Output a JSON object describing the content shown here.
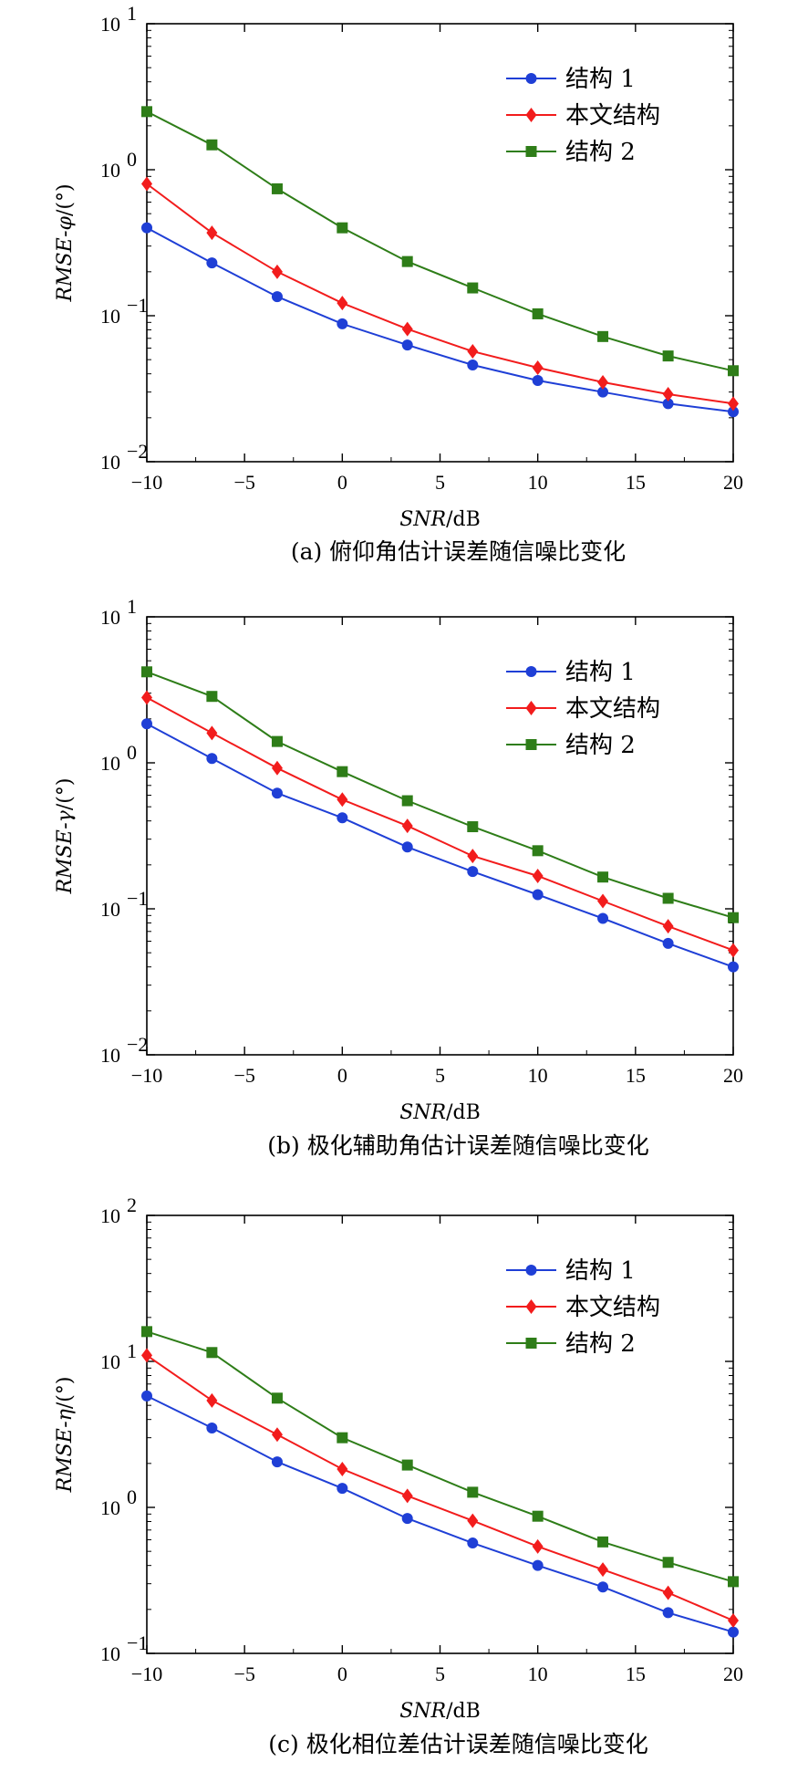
{
  "chart_data": [
    {
      "type": "line",
      "caption": "(a) 俯仰角估计误差随信噪比变化",
      "xlabel_main": "SNR",
      "xlabel_unit": "/dB",
      "ylabel_prefix": "RMSE-",
      "ylabel_symbol": "φ",
      "ylabel_suffix": "/(°)",
      "xlim": [
        -10,
        20
      ],
      "xticks": [
        -10,
        -5,
        0,
        5,
        10,
        15,
        20
      ],
      "xtick_labels": [
        "−10",
        "−5",
        "0",
        "5",
        "10",
        "15",
        "20"
      ],
      "yscale": "log",
      "ylim": [
        0.01,
        10
      ],
      "yticks": [
        {
          "value": 0.01,
          "base": "10",
          "exp": "−2"
        },
        {
          "value": 0.1,
          "base": "10",
          "exp": "−1"
        },
        {
          "value": 1,
          "base": "10",
          "exp": "0"
        },
        {
          "value": 10,
          "base": "10",
          "exp": "1"
        }
      ],
      "x": [
        -10,
        -6.67,
        -3.33,
        0,
        3.33,
        6.67,
        10,
        13.33,
        16.67,
        20
      ],
      "legend_position": "top-right",
      "series": [
        {
          "name": "结构 1",
          "color": "#1f3fd6",
          "marker": "circle",
          "values": [
            0.4,
            0.23,
            0.135,
            0.088,
            0.063,
            0.046,
            0.036,
            0.03,
            0.025,
            0.022
          ]
        },
        {
          "name": "本文结构",
          "color": "#f21c1c",
          "marker": "diamond",
          "values": [
            0.8,
            0.37,
            0.2,
            0.122,
            0.081,
            0.057,
            0.044,
            0.035,
            0.029,
            0.025
          ]
        },
        {
          "name": "结构 2",
          "color": "#2e7d18",
          "marker": "square",
          "values": [
            2.5,
            1.48,
            0.74,
            0.4,
            0.235,
            0.155,
            0.103,
            0.072,
            0.053,
            0.042
          ]
        }
      ]
    },
    {
      "type": "line",
      "caption": "(b) 极化辅助角估计误差随信噪比变化",
      "xlabel_main": "SNR",
      "xlabel_unit": "/dB",
      "ylabel_prefix": "RMSE-",
      "ylabel_symbol": "γ",
      "ylabel_suffix": "/(°)",
      "xlim": [
        -10,
        20
      ],
      "xticks": [
        -10,
        -5,
        0,
        5,
        10,
        15,
        20
      ],
      "xtick_labels": [
        "−10",
        "−5",
        "0",
        "5",
        "10",
        "15",
        "20"
      ],
      "yscale": "log",
      "ylim": [
        0.01,
        10
      ],
      "yticks": [
        {
          "value": 0.01,
          "base": "10",
          "exp": "−2"
        },
        {
          "value": 0.1,
          "base": "10",
          "exp": "−1"
        },
        {
          "value": 1,
          "base": "10",
          "exp": "0"
        },
        {
          "value": 10,
          "base": "10",
          "exp": "1"
        }
      ],
      "x": [
        -10,
        -6.67,
        -3.33,
        0,
        3.33,
        6.67,
        10,
        13.33,
        16.67,
        20
      ],
      "legend_position": "top-right",
      "series": [
        {
          "name": "结构 1",
          "color": "#1f3fd6",
          "marker": "circle",
          "values": [
            1.85,
            1.07,
            0.62,
            0.42,
            0.265,
            0.18,
            0.125,
            0.086,
            0.058,
            0.04
          ]
        },
        {
          "name": "本文结构",
          "color": "#f21c1c",
          "marker": "diamond",
          "values": [
            2.8,
            1.6,
            0.92,
            0.56,
            0.37,
            0.23,
            0.168,
            0.113,
            0.076,
            0.052
          ]
        },
        {
          "name": "结构 2",
          "color": "#2e7d18",
          "marker": "square",
          "values": [
            4.2,
            2.85,
            1.4,
            0.87,
            0.55,
            0.365,
            0.25,
            0.165,
            0.118,
            0.087
          ]
        }
      ]
    },
    {
      "type": "line",
      "caption": "(c) 极化相位差估计误差随信噪比变化",
      "xlabel_main": "SNR",
      "xlabel_unit": "/dB",
      "ylabel_prefix": "RMSE-",
      "ylabel_symbol": "η",
      "ylabel_suffix": "/(°)",
      "xlim": [
        -10,
        20
      ],
      "xticks": [
        -10,
        -5,
        0,
        5,
        10,
        15,
        20
      ],
      "xtick_labels": [
        "−10",
        "−5",
        "0",
        "5",
        "10",
        "15",
        "20"
      ],
      "yscale": "log",
      "ylim": [
        0.1,
        100
      ],
      "yticks": [
        {
          "value": 0.1,
          "base": "10",
          "exp": "−1"
        },
        {
          "value": 1,
          "base": "10",
          "exp": "0"
        },
        {
          "value": 10,
          "base": "10",
          "exp": "1"
        },
        {
          "value": 100,
          "base": "10",
          "exp": "2"
        }
      ],
      "x": [
        -10,
        -6.67,
        -3.33,
        0,
        3.33,
        6.67,
        10,
        13.33,
        16.67,
        20
      ],
      "legend_position": "top-right",
      "series": [
        {
          "name": "结构 1",
          "color": "#1f3fd6",
          "marker": "circle",
          "values": [
            5.8,
            3.5,
            2.05,
            1.35,
            0.84,
            0.57,
            0.4,
            0.285,
            0.19,
            0.14
          ]
        },
        {
          "name": "本文结构",
          "color": "#f21c1c",
          "marker": "diamond",
          "values": [
            11.0,
            5.4,
            3.15,
            1.83,
            1.2,
            0.81,
            0.54,
            0.375,
            0.26,
            0.168
          ]
        },
        {
          "name": "结构 2",
          "color": "#2e7d18",
          "marker": "square",
          "values": [
            16.0,
            11.5,
            5.6,
            3.0,
            1.95,
            1.27,
            0.87,
            0.58,
            0.42,
            0.31
          ]
        }
      ]
    }
  ]
}
